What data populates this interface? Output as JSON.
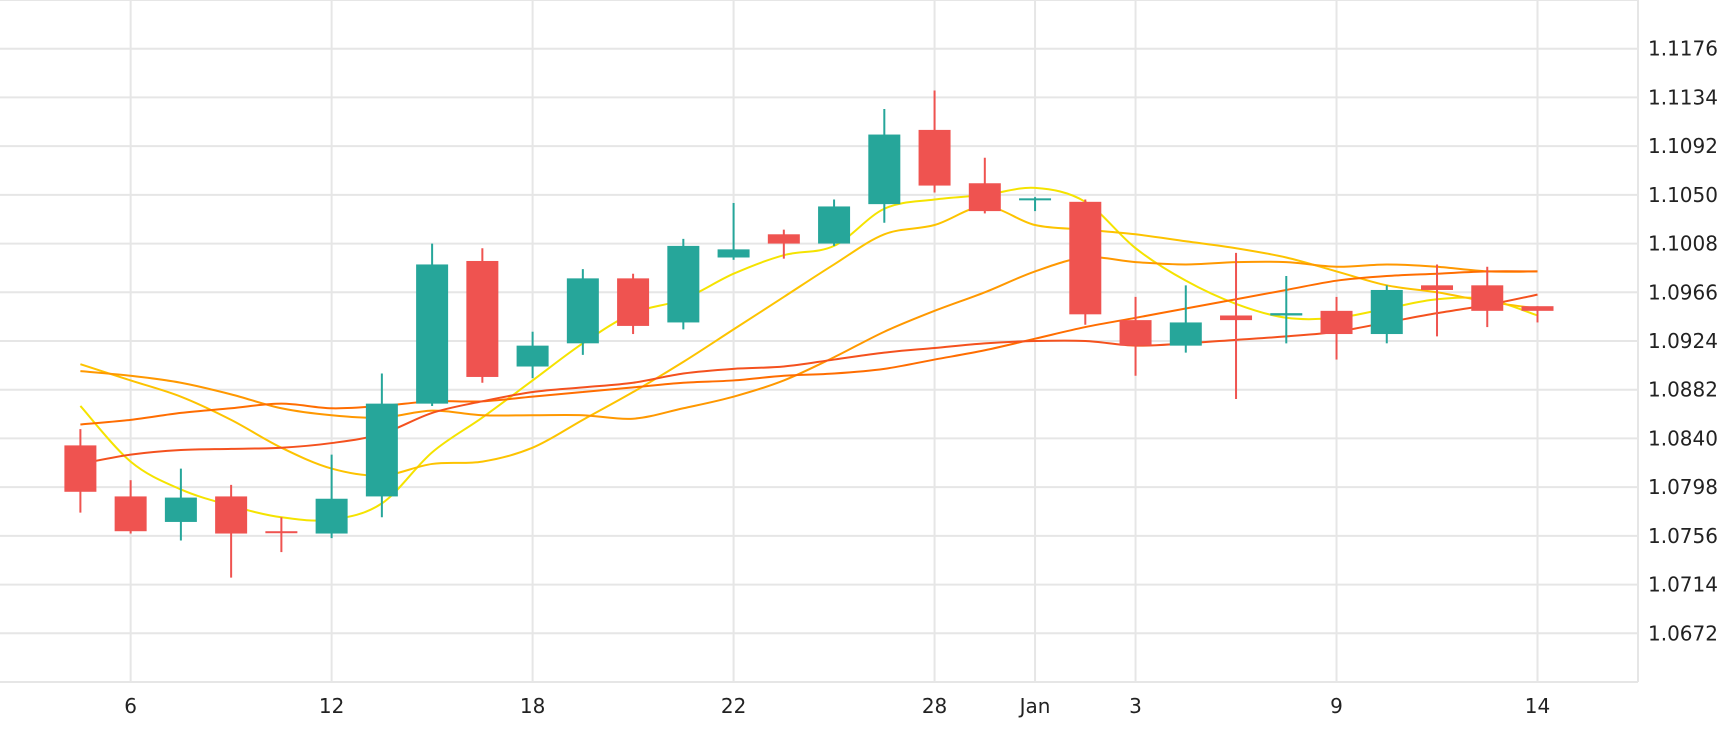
{
  "chart_data": {
    "type": "candlestick",
    "title": "",
    "xlabel": "",
    "ylabel": "",
    "colors": {
      "up": "#26a69a",
      "down": "#ef5350",
      "grid": "#e6e6e6",
      "text": "#222222"
    },
    "grid": true,
    "ylim": [
      1.063,
      1.1218
    ],
    "xlim": [
      0.2,
      16.5
    ],
    "y_ticks": [
      {
        "value": 1.1176,
        "label": "1.1176"
      },
      {
        "value": 1.1134,
        "label": "1.1134"
      },
      {
        "value": 1.1092,
        "label": "1.1092"
      },
      {
        "value": 1.105,
        "label": "1.1050"
      },
      {
        "value": 1.1008,
        "label": "1.1008"
      },
      {
        "value": 1.0966,
        "label": "1.0966"
      },
      {
        "value": 1.0924,
        "label": "1.0924"
      },
      {
        "value": 1.0882,
        "label": "1.0882"
      },
      {
        "value": 1.084,
        "label": "1.0840"
      },
      {
        "value": 1.0798,
        "label": "1.0798"
      },
      {
        "value": 1.0756,
        "label": "1.0756"
      },
      {
        "value": 1.0714,
        "label": "1.0714"
      },
      {
        "value": 1.0672,
        "label": "1.0672"
      }
    ],
    "y_extra_gridlines": [
      1.1218,
      1.063
    ],
    "x_ticks": [
      {
        "value": 1.5,
        "label": "6"
      },
      {
        "value": 3.5,
        "label": "12"
      },
      {
        "value": 5.5,
        "label": "18"
      },
      {
        "value": 7.5,
        "label": "22"
      },
      {
        "value": 9.5,
        "label": "28"
      },
      {
        "value": 10.5,
        "label": "Jan"
      },
      {
        "value": 11.5,
        "label": "3"
      },
      {
        "value": 13.5,
        "label": "9"
      },
      {
        "value": 15.5,
        "label": "14"
      }
    ],
    "candles": [
      {
        "x": 1.0,
        "open": 1.0834,
        "high": 1.0848,
        "low": 1.0776,
        "close": 1.0794
      },
      {
        "x": 1.5,
        "open": 1.079,
        "high": 1.0804,
        "low": 1.0758,
        "close": 1.076
      },
      {
        "x": 2.0,
        "open": 1.0768,
        "high": 1.0814,
        "low": 1.0752,
        "close": 1.0789
      },
      {
        "x": 2.5,
        "open": 1.079,
        "high": 1.08,
        "low": 1.072,
        "close": 1.0758
      },
      {
        "x": 3.0,
        "open": 1.076,
        "high": 1.0772,
        "low": 1.0742,
        "close": 1.0759
      },
      {
        "x": 3.5,
        "open": 1.0758,
        "high": 1.0826,
        "low": 1.0754,
        "close": 1.0788
      },
      {
        "x": 4.0,
        "open": 1.079,
        "high": 1.0896,
        "low": 1.0772,
        "close": 1.087
      },
      {
        "x": 4.5,
        "open": 1.087,
        "high": 1.1008,
        "low": 1.0868,
        "close": 1.099
      },
      {
        "x": 5.0,
        "open": 1.0993,
        "high": 1.1004,
        "low": 1.0888,
        "close": 1.0893
      },
      {
        "x": 5.5,
        "open": 1.0902,
        "high": 1.0932,
        "low": 1.0892,
        "close": 1.092
      },
      {
        "x": 6.0,
        "open": 1.0922,
        "high": 1.0986,
        "low": 1.0912,
        "close": 1.0978
      },
      {
        "x": 6.5,
        "open": 1.0978,
        "high": 1.0982,
        "low": 1.093,
        "close": 1.0937
      },
      {
        "x": 7.0,
        "open": 1.094,
        "high": 1.1012,
        "low": 1.0934,
        "close": 1.1006
      },
      {
        "x": 7.5,
        "open": 1.0996,
        "high": 1.1043,
        "low": 1.0994,
        "close": 1.1003
      },
      {
        "x": 8.0,
        "open": 1.1016,
        "high": 1.102,
        "low": 1.0995,
        "close": 1.1008
      },
      {
        "x": 8.5,
        "open": 1.1008,
        "high": 1.1046,
        "low": 1.1006,
        "close": 1.104
      },
      {
        "x": 9.0,
        "open": 1.1042,
        "high": 1.1124,
        "low": 1.1026,
        "close": 1.1102
      },
      {
        "x": 9.5,
        "open": 1.1106,
        "high": 1.114,
        "low": 1.1052,
        "close": 1.1058
      },
      {
        "x": 10.0,
        "open": 1.106,
        "high": 1.1082,
        "low": 1.1034,
        "close": 1.1036
      },
      {
        "x": 10.5,
        "open": 1.1046,
        "high": 1.1048,
        "low": 1.1036,
        "close": 1.1047
      },
      {
        "x": 11.0,
        "open": 1.1044,
        "high": 1.1046,
        "low": 1.0938,
        "close": 1.0947
      },
      {
        "x": 11.5,
        "open": 1.0942,
        "high": 1.0962,
        "low": 1.0894,
        "close": 1.092
      },
      {
        "x": 12.0,
        "open": 1.092,
        "high": 1.0972,
        "low": 1.0914,
        "close": 1.094
      },
      {
        "x": 12.5,
        "open": 1.0946,
        "high": 1.1,
        "low": 1.0874,
        "close": 1.0942
      },
      {
        "x": 13.0,
        "open": 1.0946,
        "high": 1.098,
        "low": 1.0922,
        "close": 1.0948
      },
      {
        "x": 13.5,
        "open": 1.095,
        "high": 1.0962,
        "low": 1.0908,
        "close": 1.093
      },
      {
        "x": 14.0,
        "open": 1.093,
        "high": 1.0972,
        "low": 1.0922,
        "close": 1.0968
      },
      {
        "x": 14.5,
        "open": 1.0972,
        "high": 1.099,
        "low": 1.0928,
        "close": 1.0968
      },
      {
        "x": 15.0,
        "open": 1.0972,
        "high": 1.0988,
        "low": 1.0936,
        "close": 1.095
      },
      {
        "x": 15.5,
        "open": 1.0954,
        "high": 1.0954,
        "low": 1.094,
        "close": 1.095
      }
    ],
    "series": [
      {
        "type": "line",
        "color": "#f5e300",
        "x": [
          1.0,
          1.5,
          2.0,
          2.5,
          3.0,
          3.5,
          4.0,
          4.5,
          5.0,
          5.5,
          6.0,
          6.5,
          7.0,
          7.5,
          8.0,
          8.5,
          9.0,
          9.5,
          10.0,
          10.5,
          11.0,
          11.5,
          12.0,
          12.5,
          13.0,
          13.5,
          14.0,
          14.5,
          15.0,
          15.5
        ],
        "values": [
          1.0868,
          1.082,
          1.0796,
          1.0782,
          1.0772,
          1.077,
          1.0784,
          1.0828,
          1.0858,
          1.089,
          1.0922,
          1.0948,
          1.096,
          1.0982,
          1.0998,
          1.1006,
          1.1038,
          1.1046,
          1.105,
          1.1056,
          1.1044,
          1.1004,
          1.0976,
          1.0956,
          1.0944,
          1.0944,
          1.0952,
          1.096,
          1.096,
          1.0946
        ]
      },
      {
        "type": "line",
        "color": "#fdc300",
        "x": [
          1.0,
          1.5,
          2.0,
          2.5,
          3.0,
          3.5,
          4.0,
          4.5,
          5.0,
          5.5,
          6.0,
          6.5,
          7.0,
          7.5,
          8.0,
          8.5,
          9.0,
          9.5,
          10.0,
          10.5,
          11.0,
          11.5,
          12.0,
          12.5,
          13.0,
          13.5,
          14.0,
          14.5,
          15.0,
          15.5
        ],
        "values": [
          1.0904,
          1.089,
          1.0876,
          1.0856,
          1.0832,
          1.0814,
          1.0808,
          1.0818,
          1.082,
          1.0832,
          1.0856,
          1.088,
          1.0906,
          1.0934,
          1.0962,
          1.099,
          1.1016,
          1.1024,
          1.104,
          1.1024,
          1.102,
          1.1016,
          1.101,
          1.1004,
          1.0996,
          1.0984,
          1.0972,
          1.0966,
          1.0958,
          1.0952
        ]
      },
      {
        "type": "line",
        "color": "#ff9800",
        "x": [
          1.0,
          1.5,
          2.0,
          2.5,
          3.0,
          3.5,
          4.0,
          4.5,
          5.0,
          5.5,
          6.0,
          6.5,
          7.0,
          7.5,
          8.0,
          8.5,
          9.0,
          9.5,
          10.0,
          10.5,
          11.0,
          11.5,
          12.0,
          12.5,
          13.0,
          13.5,
          14.0,
          14.5,
          15.0,
          15.5
        ],
        "values": [
          1.0898,
          1.0894,
          1.0888,
          1.0878,
          1.0866,
          1.086,
          1.0858,
          1.0864,
          1.086,
          1.086,
          1.086,
          1.0857,
          1.0866,
          1.0876,
          1.089,
          1.091,
          1.0932,
          1.095,
          1.0966,
          1.0984,
          1.0996,
          1.0992,
          1.099,
          1.0992,
          1.0992,
          1.0988,
          1.099,
          1.0988,
          1.0984,
          1.0984
        ]
      },
      {
        "type": "line",
        "color": "#ff6d00",
        "x": [
          1.0,
          1.5,
          2.0,
          2.5,
          3.0,
          3.5,
          4.0,
          4.5,
          5.0,
          5.5,
          6.0,
          6.5,
          7.0,
          7.5,
          8.0,
          8.5,
          9.0,
          9.5,
          10.0,
          10.5,
          11.0,
          11.5,
          12.0,
          12.5,
          13.0,
          13.5,
          14.0,
          14.5,
          15.0,
          15.5
        ],
        "values": [
          1.0852,
          1.0856,
          1.0862,
          1.0866,
          1.087,
          1.0866,
          1.0868,
          1.0872,
          1.0872,
          1.0876,
          1.088,
          1.0884,
          1.0888,
          1.089,
          1.0894,
          1.0896,
          1.09,
          1.0908,
          1.0916,
          1.0926,
          1.0936,
          1.0944,
          1.0952,
          1.096,
          1.0968,
          1.0976,
          1.098,
          1.0982,
          1.0984,
          1.0984
        ]
      },
      {
        "type": "line",
        "color": "#f4511e",
        "x": [
          1.0,
          1.5,
          2.0,
          2.5,
          3.0,
          3.5,
          4.0,
          4.5,
          5.0,
          5.5,
          6.0,
          6.5,
          7.0,
          7.5,
          8.0,
          8.5,
          9.0,
          9.5,
          10.0,
          10.5,
          11.0,
          11.5,
          12.0,
          12.5,
          13.0,
          13.5,
          14.0,
          14.5,
          15.0,
          15.5
        ],
        "values": [
          1.0818,
          1.0826,
          1.083,
          1.0831,
          1.0832,
          1.0836,
          1.0844,
          1.0862,
          1.0872,
          1.088,
          1.0884,
          1.0888,
          1.0896,
          1.09,
          1.0902,
          1.0908,
          1.0914,
          1.0918,
          1.0922,
          1.0924,
          1.0924,
          1.092,
          1.0922,
          1.0925,
          1.0928,
          1.0932,
          1.094,
          1.0948,
          1.0955,
          1.0964
        ]
      }
    ]
  }
}
